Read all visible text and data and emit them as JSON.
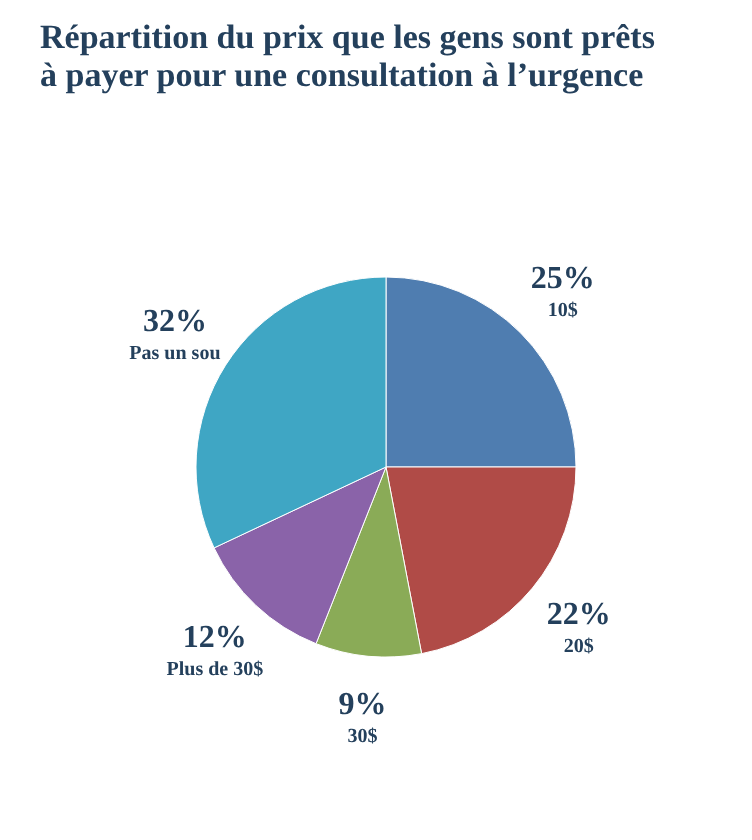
{
  "chart_data": {
    "type": "pie",
    "title": [
      "Répartition du prix que les gens sont prêts",
      "à payer pour une consultation à l’urgence"
    ],
    "categories": [
      "10$",
      "20$",
      "30$",
      "Plus de 30$",
      "Pas un sou"
    ],
    "values": [
      25,
      22,
      9,
      12,
      32
    ],
    "value_labels": [
      "25%",
      "22%",
      "9%",
      "12%",
      "32%"
    ],
    "colors": [
      "#4f7db0",
      "#b04b47",
      "#8aab57",
      "#8a63a9",
      "#3fa6c4"
    ]
  }
}
